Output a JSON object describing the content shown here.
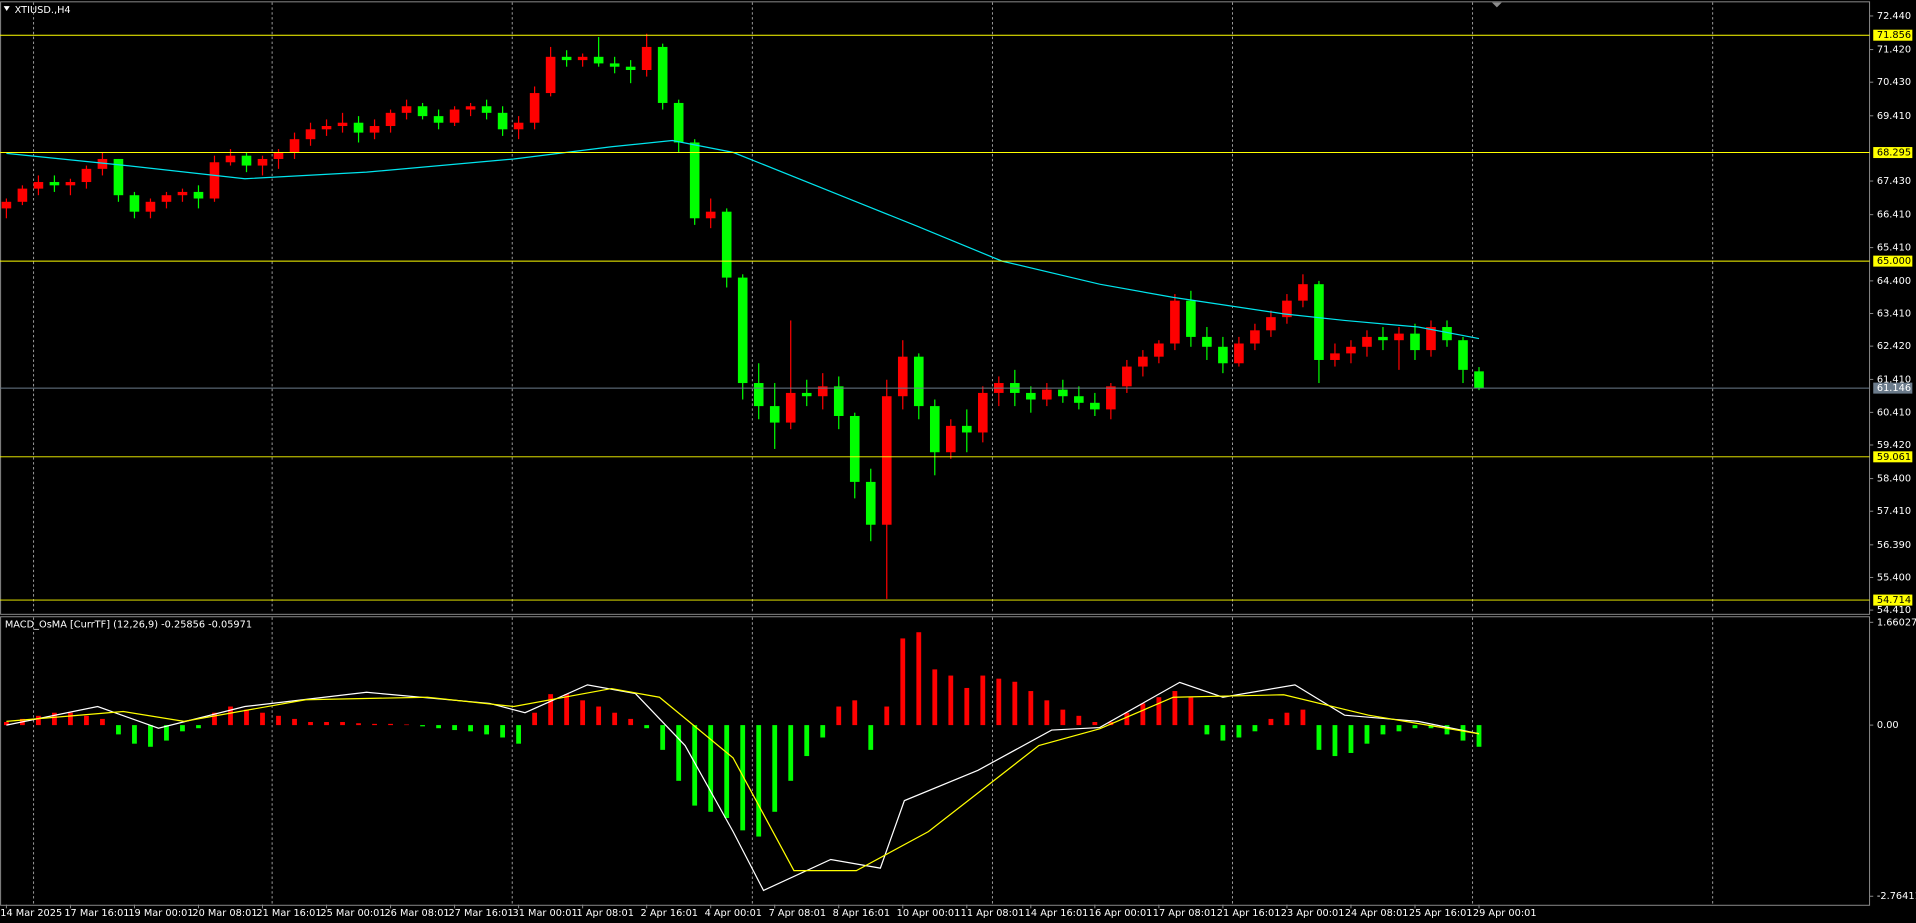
{
  "chart_data": [
    {
      "type": "candlestick",
      "title": "XTIUSD.,H4",
      "xlim": [
        -0.4,
        116.4
      ],
      "ylim": [
        54.3,
        72.85
      ],
      "yticks": [
        {
          "value": 72.44,
          "label": "72.440"
        },
        {
          "value": 71.42,
          "label": "71.420"
        },
        {
          "value": 70.43,
          "label": "70.430"
        },
        {
          "value": 69.41,
          "label": "69.410"
        },
        {
          "value": 67.43,
          "label": "67.430"
        },
        {
          "value": 66.41,
          "label": "66.410"
        },
        {
          "value": 65.41,
          "label": "65.410"
        },
        {
          "value": 64.4,
          "label": "64.400"
        },
        {
          "value": 63.41,
          "label": "63.410"
        },
        {
          "value": 62.42,
          "label": "62.420"
        },
        {
          "value": 61.41,
          "label": "61.410"
        },
        {
          "value": 60.41,
          "label": "60.410"
        },
        {
          "value": 59.42,
          "label": "59.420"
        },
        {
          "value": 58.4,
          "label": "58.400"
        },
        {
          "value": 57.41,
          "label": "57.410"
        },
        {
          "value": 56.39,
          "label": "56.390"
        },
        {
          "value": 55.4,
          "label": "55.400"
        },
        {
          "value": 54.41,
          "label": "54.410"
        }
      ],
      "xgrid": [
        1.7,
        16.6,
        31.6,
        46.6,
        61.6,
        76.6,
        91.6,
        106.6
      ],
      "up_color": "#ff0000",
      "down_color": "#00ff00",
      "levels": [
        71.856,
        68.295,
        {
          "value": 65,
          "label": "65.000"
        },
        59.061,
        54.714
      ],
      "level_color": "#ffff00",
      "price_line_color": "#6b7b8b",
      "candles": [
        [
          66.6,
          66.9,
          66.3,
          66.8
        ],
        [
          66.8,
          67.3,
          66.7,
          67.2
        ],
        [
          67.2,
          67.6,
          67.0,
          67.4
        ],
        [
          67.4,
          67.6,
          67.1,
          67.3
        ],
        [
          67.3,
          67.5,
          67.0,
          67.4
        ],
        [
          67.4,
          67.9,
          67.2,
          67.8
        ],
        [
          67.8,
          68.3,
          67.6,
          68.1
        ],
        [
          68.1,
          68.1,
          66.8,
          67.0
        ],
        [
          67.0,
          67.1,
          66.3,
          66.5
        ],
        [
          66.5,
          66.9,
          66.3,
          66.8
        ],
        [
          66.8,
          67.1,
          66.6,
          67.0
        ],
        [
          67.0,
          67.2,
          66.8,
          67.1
        ],
        [
          67.1,
          67.3,
          66.6,
          66.9
        ],
        [
          66.9,
          68.2,
          66.8,
          68.0
        ],
        [
          68.0,
          68.4,
          67.9,
          68.2
        ],
        [
          68.2,
          68.3,
          67.7,
          67.9
        ],
        [
          67.9,
          68.2,
          67.6,
          68.1
        ],
        [
          68.1,
          68.4,
          67.8,
          68.3
        ],
        [
          68.3,
          68.9,
          68.1,
          68.7
        ],
        [
          68.7,
          69.2,
          68.5,
          69.0
        ],
        [
          69.0,
          69.3,
          68.8,
          69.1
        ],
        [
          69.1,
          69.5,
          68.9,
          69.2
        ],
        [
          69.2,
          69.4,
          68.6,
          68.9
        ],
        [
          68.9,
          69.3,
          68.7,
          69.1
        ],
        [
          69.1,
          69.6,
          68.9,
          69.5
        ],
        [
          69.5,
          69.9,
          69.3,
          69.7
        ],
        [
          69.7,
          69.8,
          69.3,
          69.4
        ],
        [
          69.4,
          69.6,
          69.0,
          69.2
        ],
        [
          69.2,
          69.7,
          69.1,
          69.6
        ],
        [
          69.6,
          69.8,
          69.4,
          69.7
        ],
        [
          69.7,
          69.9,
          69.3,
          69.5
        ],
        [
          69.5,
          69.7,
          68.8,
          69.0
        ],
        [
          69.0,
          69.4,
          68.7,
          69.2
        ],
        [
          69.2,
          70.3,
          69.0,
          70.1
        ],
        [
          70.1,
          71.5,
          70.0,
          71.2
        ],
        [
          71.2,
          71.4,
          70.9,
          71.1
        ],
        [
          71.1,
          71.3,
          70.9,
          71.2
        ],
        [
          71.2,
          71.8,
          70.9,
          71.0
        ],
        [
          71.0,
          71.2,
          70.7,
          70.9
        ],
        [
          70.9,
          71.1,
          70.4,
          70.8
        ],
        [
          70.8,
          71.9,
          70.6,
          71.5
        ],
        [
          71.5,
          71.6,
          69.6,
          69.8
        ],
        [
          69.8,
          69.9,
          68.3,
          68.6
        ],
        [
          68.6,
          68.7,
          66.1,
          66.3
        ],
        [
          66.3,
          66.9,
          66.0,
          66.5
        ],
        [
          66.5,
          66.6,
          64.2,
          64.5
        ],
        [
          64.5,
          64.6,
          60.8,
          61.3
        ],
        [
          61.3,
          61.9,
          60.2,
          60.6
        ],
        [
          60.6,
          61.3,
          59.3,
          60.1
        ],
        [
          60.1,
          63.2,
          59.9,
          61.0
        ],
        [
          61.0,
          61.4,
          60.6,
          60.9
        ],
        [
          60.9,
          61.6,
          60.5,
          61.2
        ],
        [
          61.2,
          61.5,
          59.9,
          60.3
        ],
        [
          60.3,
          60.4,
          57.8,
          58.3
        ],
        [
          58.3,
          58.7,
          56.5,
          57.0
        ],
        [
          57.0,
          61.4,
          54.75,
          60.9
        ],
        [
          60.9,
          62.6,
          60.5,
          62.1
        ],
        [
          62.1,
          62.2,
          60.2,
          60.6
        ],
        [
          60.6,
          60.8,
          58.5,
          59.2
        ],
        [
          59.2,
          60.2,
          59.0,
          60.0
        ],
        [
          60.0,
          60.5,
          59.2,
          59.8
        ],
        [
          59.8,
          61.2,
          59.5,
          61.0
        ],
        [
          61.0,
          61.5,
          60.6,
          61.3
        ],
        [
          61.3,
          61.7,
          60.6,
          61.0
        ],
        [
          61.0,
          61.2,
          60.4,
          60.8
        ],
        [
          60.8,
          61.3,
          60.6,
          61.1
        ],
        [
          61.1,
          61.4,
          60.7,
          60.9
        ],
        [
          60.9,
          61.2,
          60.5,
          60.7
        ],
        [
          60.7,
          61.0,
          60.3,
          60.5
        ],
        [
          60.5,
          61.3,
          60.2,
          61.2
        ],
        [
          61.2,
          62.0,
          61.0,
          61.8
        ],
        [
          61.8,
          62.3,
          61.5,
          62.1
        ],
        [
          62.1,
          62.6,
          61.9,
          62.5
        ],
        [
          62.5,
          64.0,
          62.3,
          63.8
        ],
        [
          63.8,
          64.1,
          62.4,
          62.7
        ],
        [
          62.7,
          63.0,
          62.0,
          62.4
        ],
        [
          62.4,
          62.7,
          61.6,
          61.9
        ],
        [
          61.9,
          62.7,
          61.8,
          62.5
        ],
        [
          62.5,
          63.1,
          62.3,
          62.9
        ],
        [
          62.9,
          63.5,
          62.7,
          63.3
        ],
        [
          63.3,
          64.0,
          63.1,
          63.8
        ],
        [
          63.8,
          64.6,
          63.6,
          64.3
        ],
        [
          64.3,
          64.4,
          61.3,
          62.0
        ],
        [
          62.0,
          62.5,
          61.8,
          62.2
        ],
        [
          62.2,
          62.6,
          61.9,
          62.4
        ],
        [
          62.4,
          62.9,
          62.1,
          62.7
        ],
        [
          62.7,
          63.0,
          62.3,
          62.6
        ],
        [
          62.6,
          63.0,
          61.7,
          62.8
        ],
        [
          62.8,
          63.1,
          62.0,
          62.3
        ],
        [
          62.3,
          63.2,
          62.1,
          63.0
        ],
        [
          63.0,
          63.2,
          62.4,
          62.6
        ],
        [
          62.6,
          62.7,
          61.3,
          61.7
        ],
        [
          61.655,
          61.784,
          61.086,
          61.146
        ]
      ],
      "ma": {
        "color": "#00e5ee",
        "x": [
          0,
          7.3,
          14.9,
          22.5,
          31.7,
          37.8,
          41.6,
          45.4,
          53.1,
          56.9,
          62.2,
          68.3,
          72.9,
          79.8,
          83.6,
          88.2,
          92
        ],
        "values": [
          68.27,
          67.91,
          67.5,
          67.7,
          68.1,
          68.47,
          68.66,
          68.3,
          66.8,
          66.06,
          65.0,
          64.3,
          63.9,
          63.4,
          63.2,
          63.0,
          62.65
        ]
      }
    },
    {
      "type": "macd",
      "title": "MACD_OsMA [CurrTF] (12,26,9) -0.25856 -0.05971",
      "xlim": [
        -0.4,
        116.4
      ],
      "ylim": [
        -2.9,
        1.74
      ],
      "yticks": [
        1.66027,
        {
          "value": 0,
          "label": "0.00"
        },
        -2.76411
      ],
      "xticks": [
        {
          "value": 0,
          "label": "14 Mar 2025"
        },
        {
          "value": 4,
          "label": "17 Mar 16:01"
        },
        {
          "value": 8,
          "label": "19 Mar 00:01"
        },
        {
          "value": 12,
          "label": "20 Mar 08:01"
        },
        {
          "value": 16,
          "label": "21 Mar 16:01"
        },
        {
          "value": 20,
          "label": "25 Mar 00:01"
        },
        {
          "value": 24,
          "label": "26 Mar 08:01"
        },
        {
          "value": 28,
          "label": "27 Mar 16:01"
        },
        {
          "value": 32,
          "label": "31 Mar 00:01"
        },
        {
          "value": 36,
          "label": "1 Apr 08:01"
        },
        {
          "value": 40,
          "label": "2 Apr 16:01"
        },
        {
          "value": 44,
          "label": "4 Apr 00:01"
        },
        {
          "value": 48,
          "label": "7 Apr 08:01"
        },
        {
          "value": 52,
          "label": "8 Apr 16:01"
        },
        {
          "value": 56,
          "label": "10 Apr 00:01"
        },
        {
          "value": 60,
          "label": "11 Apr 08:01"
        },
        {
          "value": 64,
          "label": "14 Apr 16:01"
        },
        {
          "value": 68,
          "label": "16 Apr 00:01"
        },
        {
          "value": 72,
          "label": "17 Apr 08:01"
        },
        {
          "value": 76,
          "label": "21 Apr 16:01"
        },
        {
          "value": 80,
          "label": "23 Apr 00:01"
        },
        {
          "value": 84,
          "label": "24 Apr 08:01"
        },
        {
          "value": 88,
          "label": "25 Apr 16:01"
        },
        {
          "value": 92,
          "label": "29 Apr 00:01"
        }
      ],
      "histogram": {
        "color": "#ff0000",
        "negative_color": "#00ff00",
        "values": [
          0.05,
          0.1,
          0.15,
          0.2,
          0.2,
          0.15,
          0.1,
          -0.15,
          -0.3,
          -0.35,
          -0.25,
          -0.1,
          -0.05,
          0.2,
          0.3,
          0.25,
          0.2,
          0.15,
          0.1,
          0.05,
          0.05,
          0.05,
          0.03,
          0.02,
          0.02,
          0.01,
          -0.02,
          -0.05,
          -0.08,
          -0.1,
          -0.15,
          -0.2,
          -0.3,
          0.2,
          0.5,
          0.5,
          0.4,
          0.3,
          0.2,
          0.1,
          -0.05,
          -0.4,
          -0.9,
          -1.3,
          -1.4,
          -1.5,
          -1.7,
          -1.8,
          -1.4,
          -0.9,
          -0.5,
          -0.2,
          0.3,
          0.4,
          -0.4,
          0.3,
          1.4,
          1.5,
          0.9,
          0.8,
          0.6,
          0.8,
          0.75,
          0.7,
          0.55,
          0.4,
          0.25,
          0.15,
          0.05,
          0.05,
          0.2,
          0.35,
          0.45,
          0.55,
          0.45,
          -0.15,
          -0.25,
          -0.2,
          -0.1,
          0.1,
          0.2,
          0.25,
          -0.4,
          -0.5,
          -0.45,
          -0.3,
          -0.15,
          -0.1,
          -0.05,
          -0.05,
          -0.15,
          -0.25,
          -0.35
        ]
      },
      "series": [
        {
          "color": "#ffffff",
          "x": [
            0,
            5.7,
            9.5,
            14.9,
            22.5,
            30.2,
            32.4,
            36.3,
            39.3,
            42.4,
            45.4,
            47.3,
            51.5,
            54.6,
            56.1,
            60.7,
            65.3,
            68.3,
            73.3,
            76,
            80.5,
            83.6,
            88.2,
            92
          ],
          "values": [
            0,
            0.3,
            -0.05,
            0.3,
            0.53,
            0.35,
            0.2,
            0.65,
            0.51,
            -0.33,
            -1.72,
            -2.67,
            -2.17,
            -2.31,
            -1.22,
            -0.73,
            -0.08,
            -0.04,
            0.69,
            0.45,
            0.65,
            0.16,
            0.06,
            -0.14
          ]
        },
        {
          "color": "#ffff00",
          "x": [
            0,
            7.3,
            11.1,
            18.7,
            26.3,
            31.7,
            37.8,
            40.8,
            45.4,
            49.2,
            53.1,
            57.6,
            64.5,
            68.3,
            72.9,
            79.8,
            85.1,
            92
          ],
          "values": [
            0.06,
            0.22,
            0.06,
            0.41,
            0.45,
            0.3,
            0.59,
            0.45,
            -0.53,
            -2.35,
            -2.35,
            -1.72,
            -0.33,
            -0.06,
            0.45,
            0.49,
            0.16,
            -0.14
          ]
        }
      ]
    }
  ]
}
